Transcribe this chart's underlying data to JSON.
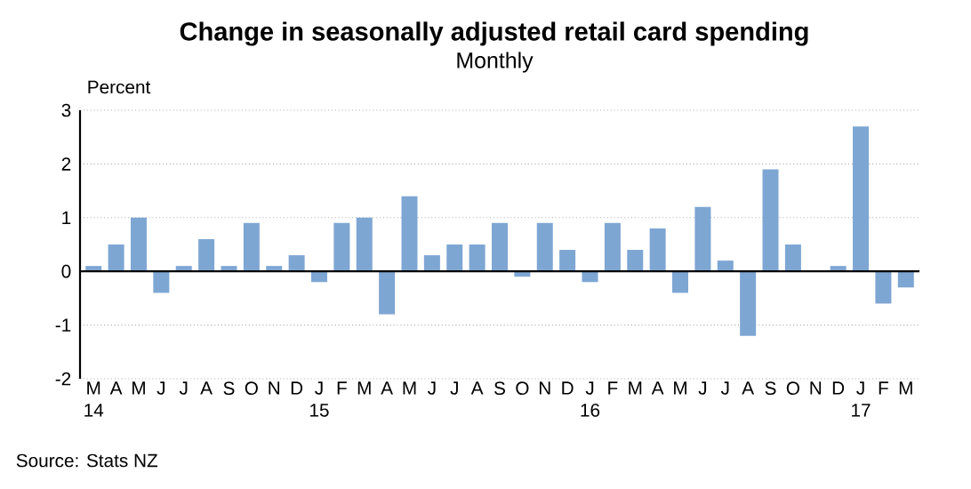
{
  "chart_data": {
    "type": "bar",
    "title": "Change in seasonally adjusted retail card spending",
    "subtitle": "Monthly",
    "ylabel": "Percent",
    "categories": [
      "M 14",
      "A",
      "M",
      "J",
      "J",
      "A",
      "S",
      "O",
      "N",
      "D",
      "J 15",
      "F",
      "M",
      "A",
      "M",
      "J",
      "J",
      "A",
      "S",
      "O",
      "N",
      "D",
      "J 16",
      "F",
      "M",
      "A",
      "M",
      "J",
      "J",
      "A",
      "S",
      "O",
      "N",
      "D",
      "J 17",
      "F",
      "M"
    ],
    "values": [
      0.1,
      0.5,
      1.0,
      -0.4,
      0.1,
      0.6,
      0.1,
      0.9,
      0.1,
      0.3,
      -0.2,
      0.9,
      1.0,
      -0.8,
      1.4,
      0.3,
      0.5,
      0.5,
      0.9,
      -0.1,
      0.9,
      0.4,
      -0.2,
      0.9,
      0.4,
      0.8,
      -0.4,
      1.2,
      0.2,
      -1.2,
      1.9,
      0.5,
      0.0,
      0.1,
      2.7,
      -0.6,
      -0.3
    ],
    "color": "#7ea6d3",
    "ylim": [
      -2,
      3
    ],
    "yticks": [
      -2,
      -1,
      0,
      1,
      2,
      3
    ],
    "grid": "y",
    "annotations": [
      "Source: Stats NZ"
    ]
  }
}
